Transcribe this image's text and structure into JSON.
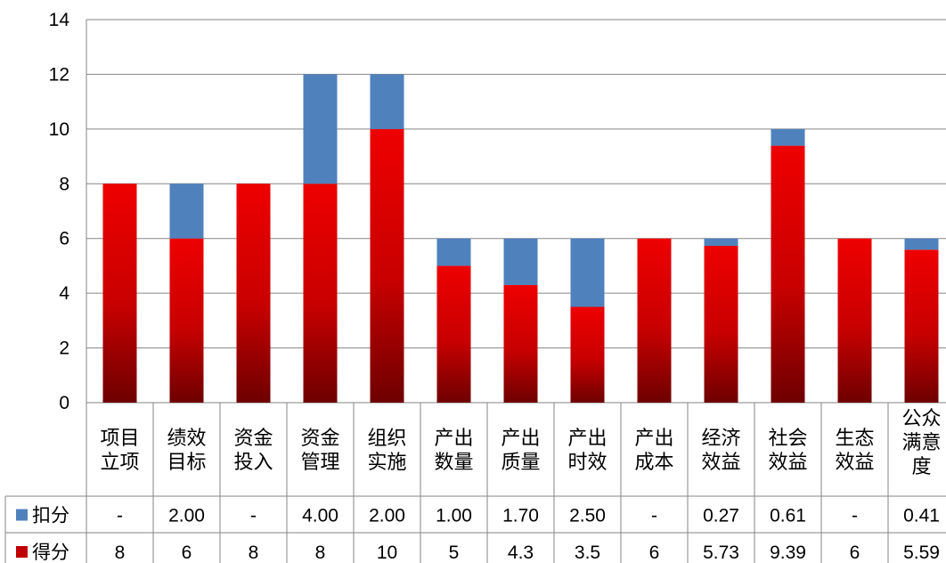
{
  "chart_data": {
    "type": "bar",
    "stacked": true,
    "categories": [
      [
        "项目",
        "立项"
      ],
      [
        "绩效",
        "目标"
      ],
      [
        "资金",
        "投入"
      ],
      [
        "资金",
        "管理"
      ],
      [
        "组织",
        "实施"
      ],
      [
        "产出",
        "数量"
      ],
      [
        "产出",
        "质量"
      ],
      [
        "产出",
        "时效"
      ],
      [
        "产出",
        "成本"
      ],
      [
        "经济",
        "效益"
      ],
      [
        "社会",
        "效益"
      ],
      [
        "生态",
        "效益"
      ],
      [
        "公众",
        "满意",
        "度"
      ]
    ],
    "series": [
      {
        "name": "得分",
        "color": "#c00000",
        "values": [
          8,
          6,
          8,
          8,
          10,
          5,
          4.3,
          3.5,
          6,
          5.73,
          9.39,
          6,
          5.59
        ],
        "table_labels": [
          "8",
          "6",
          "8",
          "8",
          "10",
          "5",
          "4.3",
          "3.5",
          "6",
          "5.73",
          "9.39",
          "6",
          "5.59"
        ]
      },
      {
        "name": "扣分",
        "color": "#4f81bd",
        "values": [
          0,
          2,
          0,
          4,
          2,
          1,
          1.7,
          2.5,
          0,
          0.27,
          0.61,
          0,
          0.41
        ],
        "table_labels": [
          "-",
          "2.00",
          "-",
          "4.00",
          "2.00",
          "1.00",
          "1.70",
          "2.50",
          "-",
          "0.27",
          "0.61",
          "-",
          "0.41"
        ]
      }
    ],
    "ylim": [
      0,
      14
    ],
    "yticks": [
      0,
      2,
      4,
      6,
      8,
      10,
      12,
      14
    ],
    "grid": true,
    "legend": "data-table"
  }
}
